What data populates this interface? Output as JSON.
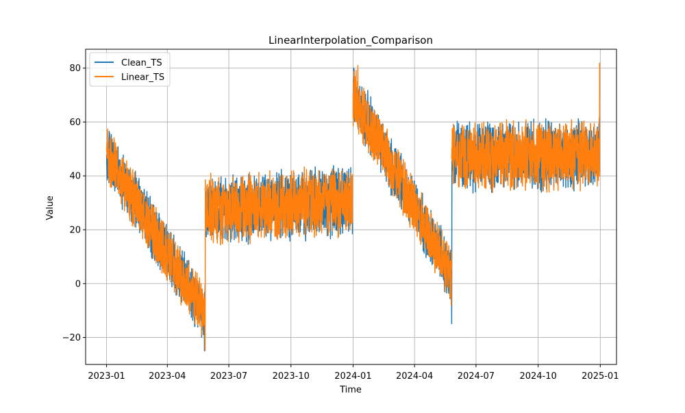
{
  "chart_data": {
    "type": "line",
    "title": "LinearInterpolation_Comparison",
    "xlabel": "Time",
    "ylabel": "Value",
    "x_axis_type": "date",
    "xlim": [
      "2022-12-01",
      "2025-01-25"
    ],
    "ylim": [
      -30,
      87
    ],
    "x_ticks": [
      "2023-01",
      "2023-04",
      "2023-07",
      "2023-10",
      "2024-01",
      "2024-04",
      "2024-07",
      "2024-10",
      "2025-01"
    ],
    "y_ticks": [
      -20,
      0,
      20,
      40,
      60,
      80
    ],
    "grid": true,
    "legend_position": "top-left",
    "series": [
      {
        "name": "Clean_TS",
        "color": "#1f77b4",
        "segments": [
          {
            "start": "2023-01-01",
            "end": "2023-05-27",
            "center_start": 48,
            "center_end": -12,
            "amplitude": 11
          },
          {
            "start": "2023-05-27",
            "end": "2023-12-31",
            "center_start": 27,
            "center_end": 31,
            "amplitude": 13
          },
          {
            "start": "2024-01-01",
            "end": "2024-05-26",
            "center_start": 70,
            "center_end": 3,
            "amplitude": 11
          },
          {
            "start": "2024-05-26",
            "end": "2024-12-31",
            "center_start": 47,
            "center_end": 48,
            "amplitude": 13
          }
        ],
        "extremes": [
          {
            "date": "2024-05-26",
            "value": -15
          },
          {
            "date": "2023-05-26",
            "value": -25
          },
          {
            "date": "2024-01-02",
            "value": 80
          }
        ]
      },
      {
        "name": "Linear_TS",
        "color": "#ff7f0e",
        "segments": [
          {
            "start": "2023-01-01",
            "end": "2023-05-27",
            "center_start": 48,
            "center_end": -12,
            "amplitude": 11
          },
          {
            "start": "2023-05-27",
            "end": "2023-12-31",
            "center_start": 27,
            "center_end": 31,
            "amplitude": 13
          },
          {
            "start": "2024-01-01",
            "end": "2024-05-26",
            "center_start": 70,
            "center_end": 3,
            "amplitude": 11
          },
          {
            "start": "2024-05-26",
            "end": "2024-12-31",
            "center_start": 47,
            "center_end": 48,
            "amplitude": 13
          }
        ],
        "extremes": [
          {
            "date": "2024-12-31",
            "value": 82
          },
          {
            "date": "2023-05-27",
            "value": -25
          },
          {
            "date": "2024-01-08",
            "value": 81
          }
        ]
      }
    ]
  }
}
